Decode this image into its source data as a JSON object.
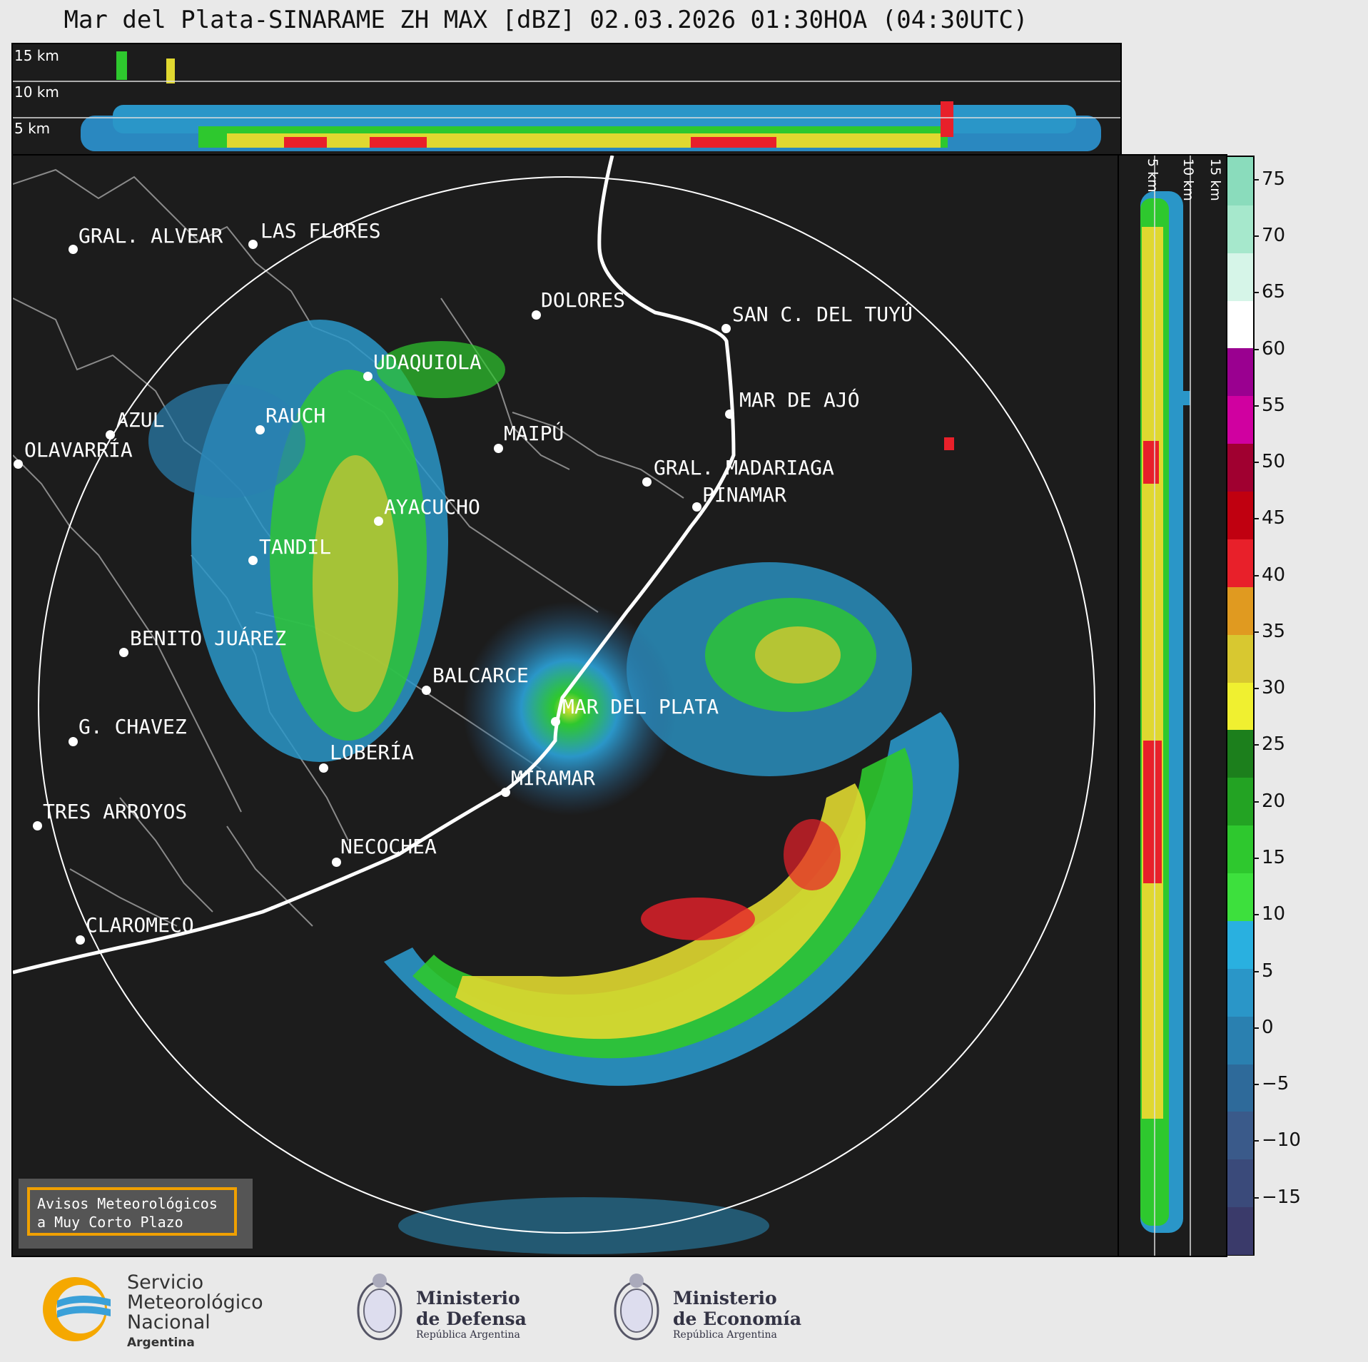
{
  "title": "Mar del Plata-SINARAME ZH MAX [dBZ] 02.03.2026 01:30HOA (04:30UTC)",
  "top_heights": [
    "15 km",
    "10 km",
    "5 km"
  ],
  "side_heights": [
    "5 km",
    "10 km",
    "15 km"
  ],
  "colorbar": {
    "ticks": [
      "75",
      "70",
      "65",
      "60",
      "55",
      "50",
      "45",
      "40",
      "35",
      "30",
      "25",
      "20",
      "15",
      "10",
      "5",
      "0",
      "−5",
      "−10",
      "−15"
    ],
    "colors": [
      "#3a3a6a",
      "#3a4a7a",
      "#3a5a8a",
      "#2e6a9a",
      "#2a80b0",
      "#2a96c8",
      "#29b0e0",
      "#3de03d",
      "#2ec82e",
      "#23a323",
      "#1c7f1c",
      "#f0f030",
      "#d8c830",
      "#e09a20",
      "#e8202a",
      "#c00010",
      "#a00030",
      "#d000a0",
      "#9a0090",
      "#ffffff",
      "#d6f5e8",
      "#a6e8cc",
      "#8adcbc"
    ],
    "min": -20,
    "max": 77
  },
  "cities": [
    {
      "name": "GRAL. ALVEAR"
    },
    {
      "name": "LAS FLORES"
    },
    {
      "name": "DOLORES"
    },
    {
      "name": "SAN C. DEL TUYÚ"
    },
    {
      "name": "UDAQUIOLA"
    },
    {
      "name": "AZUL"
    },
    {
      "name": "OLAVARRÍA"
    },
    {
      "name": "RAUCH"
    },
    {
      "name": "MAIPÚ"
    },
    {
      "name": "MAR DE AJÓ"
    },
    {
      "name": "GRAL. MADARIAGA"
    },
    {
      "name": "PINAMAR"
    },
    {
      "name": "AYACUCHO"
    },
    {
      "name": "TANDIL"
    },
    {
      "name": "BENITO JUÁREZ"
    },
    {
      "name": "BALCARCE"
    },
    {
      "name": "MAR DEL PLATA"
    },
    {
      "name": "G. CHAVEZ"
    },
    {
      "name": "LOBERÍA"
    },
    {
      "name": "MIRAMAR"
    },
    {
      "name": "TRES ARROYOS"
    },
    {
      "name": "NECOCHEA"
    },
    {
      "name": "CLAROMECO"
    }
  ],
  "aviso": {
    "line1": "Avisos Meteorológicos",
    "line2": "a Muy Corto Plazo"
  },
  "logos": {
    "smn": {
      "l1": "Servicio",
      "l2": "Meteorológico",
      "l3": "Nacional",
      "l4": "Argentina"
    },
    "defensa": {
      "l1": "Ministerio",
      "l2": "de Defensa",
      "l3": "República Argentina"
    },
    "economia": {
      "l1": "Ministerio",
      "l2": "de Economía",
      "l3": "República Argentina"
    }
  }
}
